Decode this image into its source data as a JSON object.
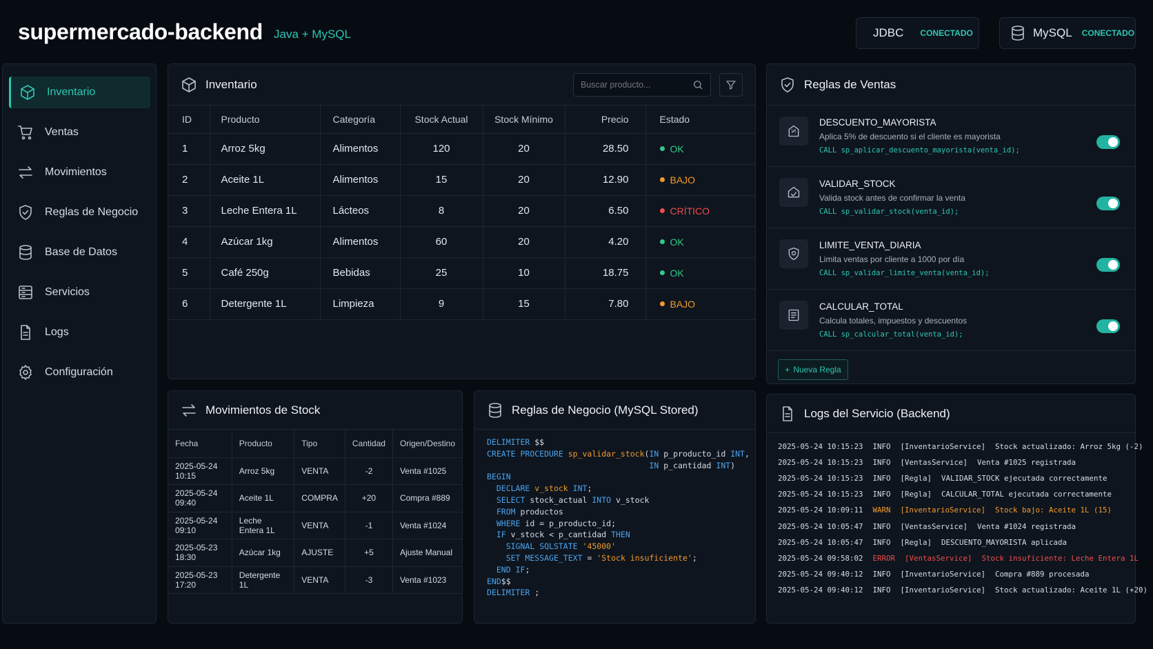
{
  "header": {
    "title": "supermercado-backend",
    "subtitle": "Java + MySQL",
    "jdbc": {
      "name": "JDBC",
      "state": "CONECTADO"
    },
    "mysql": {
      "name": "MySQL",
      "state": "CONECTADO"
    }
  },
  "sidebar": {
    "items": [
      {
        "label": "Inventario",
        "icon": "cube-icon"
      },
      {
        "label": "Ventas",
        "icon": "cart-icon"
      },
      {
        "label": "Movimientos",
        "icon": "arrows-swap-icon"
      },
      {
        "label": "Reglas de Negocio",
        "icon": "shield-icon"
      },
      {
        "label": "Base de Datos",
        "icon": "database-icon"
      },
      {
        "label": "Servicios",
        "icon": "server-icon"
      },
      {
        "label": "Logs",
        "icon": "document-icon"
      },
      {
        "label": "Configuración",
        "icon": "gear-icon"
      }
    ]
  },
  "inventory": {
    "title": "Inventario",
    "search_placeholder": "Buscar producto...",
    "columns": [
      "ID",
      "Producto",
      "Categoría",
      "Stock Actual",
      "Stock Mínimo",
      "Precio",
      "Estado"
    ],
    "rows": [
      {
        "id": "1",
        "producto": "Arroz 5kg",
        "categoria": "Alimentos",
        "stock": "120",
        "minimo": "20",
        "precio": "28.50",
        "estado": "OK"
      },
      {
        "id": "2",
        "producto": "Aceite 1L",
        "categoria": "Alimentos",
        "stock": "15",
        "minimo": "20",
        "precio": "12.90",
        "estado": "BAJO"
      },
      {
        "id": "3",
        "producto": "Leche Entera 1L",
        "categoria": "Lácteos",
        "stock": "8",
        "minimo": "20",
        "precio": "6.50",
        "estado": "CRÍTICO"
      },
      {
        "id": "4",
        "producto": "Azúcar 1kg",
        "categoria": "Alimentos",
        "stock": "60",
        "minimo": "20",
        "precio": "4.20",
        "estado": "OK"
      },
      {
        "id": "5",
        "producto": "Café 250g",
        "categoria": "Bebidas",
        "stock": "25",
        "minimo": "10",
        "precio": "18.75",
        "estado": "OK"
      },
      {
        "id": "6",
        "producto": "Detergente 1L",
        "categoria": "Limpieza",
        "stock": "9",
        "minimo": "15",
        "precio": "7.80",
        "estado": "BAJO"
      }
    ]
  },
  "rules": {
    "title": "Reglas de Ventas",
    "items": [
      {
        "name": "DESCUENTO_MAYORISTA",
        "desc": "Aplica 5% de descuento si el cliente es mayorista",
        "call": "CALL sp_aplicar_descuento_mayorista(venta_id);",
        "enabled": true
      },
      {
        "name": "VALIDAR_STOCK",
        "desc": "Valida stock antes de confirmar la venta",
        "call": "CALL sp_validar_stock(venta_id);",
        "enabled": true
      },
      {
        "name": "LIMITE_VENTA_DIARIA",
        "desc": "Limita ventas por cliente a 1000 por día",
        "call": "CALL sp_validar_limite_venta(venta_id);",
        "enabled": true
      },
      {
        "name": "CALCULAR_TOTAL",
        "desc": "Calcula totales, impuestos y descuentos",
        "call": "CALL sp_calcular_total(venta_id);",
        "enabled": true
      }
    ],
    "new_rule_label": "Nueva Regla"
  },
  "movements": {
    "title": "Movimientos de Stock",
    "columns": [
      "Fecha",
      "Producto",
      "Tipo",
      "Cantidad",
      "Origen/Destino"
    ],
    "rows": [
      {
        "fecha": "2025-05-24 10:15",
        "producto": "Arroz 5kg",
        "tipo": "VENTA",
        "cantidad": "-2",
        "origen": "Venta #1025"
      },
      {
        "fecha": "2025-05-24 09:40",
        "producto": "Aceite 1L",
        "tipo": "COMPRA",
        "cantidad": "+20",
        "origen": "Compra #889"
      },
      {
        "fecha": "2025-05-24 09:10",
        "producto": "Leche Entera 1L",
        "tipo": "VENTA",
        "cantidad": "-1",
        "origen": "Venta #1024"
      },
      {
        "fecha": "2025-05-23 18:30",
        "producto": "Azúcar 1kg",
        "tipo": "AJUSTE",
        "cantidad": "+5",
        "origen": "Ajuste Manual"
      },
      {
        "fecha": "2025-05-23 17:20",
        "producto": "Detergente 1L",
        "tipo": "VENTA",
        "cantidad": "-3",
        "origen": "Venta #1023"
      }
    ]
  },
  "code": {
    "title": "Reglas de Negocio (MySQL Stored)",
    "lines": [
      "DELIMITER $$",
      "CREATE PROCEDURE sp_validar_stock(IN p_producto_id INT,",
      "                                  IN p_cantidad INT)",
      "BEGIN",
      "  DECLARE v_stock INT;",
      "  SELECT stock_actual INTO v_stock",
      "  FROM productos",
      "  WHERE id = p_producto_id;",
      "  IF v_stock < p_cantidad THEN",
      "    SIGNAL SQLSTATE '45000'",
      "    SET MESSAGE_TEXT = 'Stock insuficiente';",
      "  END IF;",
      "END$$",
      "DELIMITER ;"
    ]
  },
  "logs": {
    "title": "Logs del Servicio (Backend)",
    "lines": [
      {
        "ts": "2025-05-24 10:15:23",
        "level": "INFO",
        "source": "[InventarioService]",
        "msg": "Stock actualizado: Arroz 5kg (-2)"
      },
      {
        "ts": "2025-05-24 10:15:23",
        "level": "INFO",
        "source": "[VentasService]",
        "msg": "Venta #1025 registrada"
      },
      {
        "ts": "2025-05-24 10:15:23",
        "level": "INFO",
        "source": "[Regla]",
        "msg": "VALIDAR_STOCK ejecutada correctamente"
      },
      {
        "ts": "2025-05-24 10:15:23",
        "level": "INFO",
        "source": "[Regla]",
        "msg": "CALCULAR_TOTAL ejecutada correctamente"
      },
      {
        "ts": "2025-05-24 10:09:11",
        "level": "WARN",
        "source": "[InventarioService]",
        "msg": "Stock bajo: Aceite 1L (15)"
      },
      {
        "ts": "2025-05-24 10:05:47",
        "level": "INFO",
        "source": "[VentasService]",
        "msg": "Venta #1024 registrada"
      },
      {
        "ts": "2025-05-24 10:05:47",
        "level": "INFO",
        "source": "[Regla]",
        "msg": "DESCUENTO_MAYORISTA aplicada"
      },
      {
        "ts": "2025-05-24 09:58:02",
        "level": "ERROR",
        "source": "[VentasService]",
        "msg": "Stock insuficiente: Leche Entera 1L"
      },
      {
        "ts": "2025-05-24 09:40:12",
        "level": "INFO",
        "source": "[InventarioService]",
        "msg": "Compra #889 procesada"
      },
      {
        "ts": "2025-05-24 09:40:12",
        "level": "INFO",
        "source": "[InventarioService]",
        "msg": "Stock actualizado: Aceite 1L (+20)"
      }
    ]
  },
  "colors": {
    "accent": "#2ec7b3",
    "ok": "#35c98a",
    "warn": "#f59a2a",
    "error": "#f04c4c",
    "ajuste": "#4aa3f0"
  }
}
